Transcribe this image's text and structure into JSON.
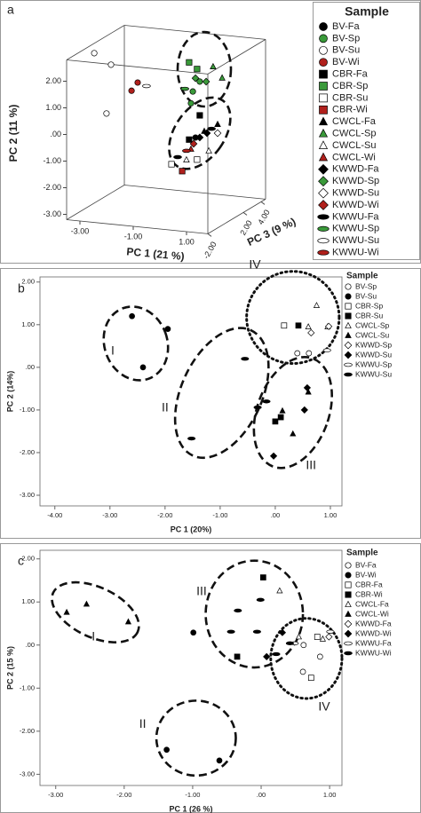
{
  "chart_data": [
    {
      "type": "scatter3d",
      "panel": "a",
      "xlabel": "PC 1 (21 %)",
      "ylabel": "PC 2 (11 %)",
      "zlabel": "PC 3 (9 %)",
      "legend_title": "Sample",
      "xlim": [
        -3.5,
        1.8
      ],
      "ylim": [
        -3.2,
        2.8
      ],
      "zlim": [
        -2,
        4.5
      ],
      "xticks": [
        {
          "value": -3,
          "label": "-3.00"
        },
        {
          "value": -1,
          "label": "-1.00"
        },
        {
          "value": 1,
          "label": "1.00"
        }
      ],
      "yticks": [
        {
          "value": 2,
          "label": "2.00"
        },
        {
          "value": 1,
          "label": "1.00"
        },
        {
          "value": 0,
          "label": ".00"
        },
        {
          "value": -1,
          "label": "-1.00"
        },
        {
          "value": -2,
          "label": "-2.00"
        },
        {
          "value": -3,
          "label": "-3.00"
        }
      ],
      "zticks": [
        {
          "value": -2,
          "label": "-2.00"
        },
        {
          "value": 2,
          "label": "2.00"
        },
        {
          "value": 4,
          "label": "4.00"
        }
      ],
      "series": [
        {
          "name": "BV-Fa",
          "color": "#000000",
          "marker": "circle",
          "x": [
            0.67
          ],
          "y": [
            -0.1
          ],
          "z": [
            0
          ]
        },
        {
          "name": "BV-Sp",
          "color": "#3a9a3a",
          "marker": "circle",
          "x": [
            0.57,
            0.83,
            0.5
          ],
          "y": [
            1.62,
            2.02,
            1.17
          ],
          "z": [
            0,
            0,
            0
          ]
        },
        {
          "name": "BV-Su",
          "color": "#ffffff",
          "marker": "circle",
          "x": [
            -3.13,
            -2.5,
            -2.67
          ],
          "y": [
            2.69,
            2.32,
            0.47
          ],
          "z": [
            0,
            0,
            0
          ]
        },
        {
          "name": "BV-Wi",
          "color": "#b0201c",
          "marker": "circle",
          "x": [
            -1.5,
            -1.73
          ],
          "y": [
            1.75,
            1.42
          ],
          "z": [
            0,
            0
          ]
        },
        {
          "name": "CBR-Fa",
          "color": "#000000",
          "marker": "square",
          "x": [
            0.83,
            0.43
          ],
          "y": [
            0.75,
            -0.2
          ],
          "z": [
            0,
            0
          ]
        },
        {
          "name": "CBR-Sp",
          "color": "#3a9a3a",
          "marker": "square",
          "x": [
            0.43,
            0.73
          ],
          "y": [
            2.7,
            2.48
          ],
          "z": [
            0,
            0
          ]
        },
        {
          "name": "CBR-Su",
          "color": "#ffffff",
          "marker": "square",
          "x": [
            -0.23,
            0.73
          ],
          "y": [
            -1.19,
            -0.92
          ],
          "z": [
            0,
            0
          ]
        },
        {
          "name": "CBR-Wi",
          "color": "#b0201c",
          "marker": "square",
          "x": [
            0.17
          ],
          "y": [
            -1.41
          ],
          "z": [
            0
          ]
        },
        {
          "name": "CWCL-Fa",
          "color": "#000000",
          "marker": "triangle",
          "x": [
            1,
            1.5
          ],
          "y": [
            0.17,
            0.48
          ],
          "z": [
            0,
            0
          ]
        },
        {
          "name": "CWCL-Sp",
          "color": "#3a9a3a",
          "marker": "triangle",
          "x": [
            1.33,
            1.67
          ],
          "y": [
            2.63,
            2.24
          ],
          "z": [
            0,
            0
          ]
        },
        {
          "name": "CWCL-Su",
          "color": "#ffffff",
          "marker": "triangle",
          "x": [
            0.33,
            1.17
          ],
          "y": [
            -0.97,
            -0.55
          ],
          "z": [
            0,
            0
          ]
        },
        {
          "name": "CWCL-Wi",
          "color": "#b0201c",
          "marker": "triangle",
          "x": [
            0.5
          ],
          "y": [
            -0.55
          ],
          "z": [
            0
          ]
        },
        {
          "name": "KWWD-Fa",
          "color": "#000000",
          "marker": "diamond",
          "x": [
            0.83,
            1.1
          ],
          "y": [
            -0.08,
            0.11
          ],
          "z": [
            0,
            0
          ]
        },
        {
          "name": "KWWD-Sp",
          "color": "#3a9a3a",
          "marker": "diamond",
          "x": [
            1.07,
            0.67
          ],
          "y": [
            2.04,
            2.13
          ],
          "z": [
            0,
            0
          ]
        },
        {
          "name": "KWWD-Su",
          "color": "#ffffff",
          "marker": "diamond",
          "x": [
            1.5
          ],
          "y": [
            0.15
          ],
          "z": [
            0
          ]
        },
        {
          "name": "KWWD-Wi",
          "color": "#b0201c",
          "marker": "diamond",
          "x": [
            0.6
          ],
          "y": [
            -0.34
          ],
          "z": [
            0
          ]
        },
        {
          "name": "KWWU-Fa",
          "color": "#000000",
          "marker": "ellipse",
          "x": [
            0,
            1.27
          ],
          "y": [
            -0.9,
            0.29
          ],
          "z": [
            0,
            0
          ]
        },
        {
          "name": "KWWU-Sp",
          "color": "#3a9a3a",
          "marker": "ellipse",
          "x": [
            0.27
          ],
          "y": [
            1.69
          ],
          "z": [
            0
          ]
        },
        {
          "name": "KWWU-Su",
          "color": "#ffffff",
          "marker": "ellipse",
          "x": [
            -1.17
          ],
          "y": [
            1.65
          ],
          "z": [
            0
          ]
        },
        {
          "name": "KWWU-Wi",
          "color": "#b0201c",
          "marker": "ellipse",
          "x": [
            0.33
          ],
          "y": [
            -0.63
          ],
          "z": [
            0
          ]
        }
      ],
      "annotations": [
        {
          "cx": 1,
          "cy": 2.5,
          "rx": 1,
          "ry": 1.4,
          "angle": 0,
          "style": "dashed"
        },
        {
          "cx": 0.83,
          "cy": 0.08,
          "rx": 0.93,
          "ry": 1.5,
          "angle": 35,
          "style": "dashed"
        }
      ]
    },
    {
      "type": "scatter",
      "panel": "b",
      "xlabel": "PC 1 (20%)",
      "ylabel": "PC 2 (14%)",
      "legend_title": "Sample",
      "xlim": [
        -4.27,
        1.21
      ],
      "ylim": [
        -3.25,
        2.12
      ],
      "xticks": [
        {
          "value": -4,
          "label": "-4.00"
        },
        {
          "value": -3,
          "label": "-3.00"
        },
        {
          "value": -2,
          "label": "-2.00"
        },
        {
          "value": -1,
          "label": "-1.00"
        },
        {
          "value": 0,
          "label": ".00"
        },
        {
          "value": 1,
          "label": "1.00"
        }
      ],
      "yticks": [
        {
          "value": 2,
          "label": "2.00"
        },
        {
          "value": 1,
          "label": "1.00"
        },
        {
          "value": 0,
          "label": ".00"
        },
        {
          "value": -1,
          "label": "-1.00"
        },
        {
          "value": -2,
          "label": "-2.00"
        },
        {
          "value": -3,
          "label": "-3.00"
        }
      ],
      "series": [
        {
          "name": "BV-Sp",
          "color": "#ffffff",
          "marker": "circle",
          "x": [
            0.4,
            0.61
          ],
          "y": [
            0.33,
            0.33
          ]
        },
        {
          "name": "BV-Su",
          "color": "#000000",
          "marker": "circle",
          "x": [
            -2.6,
            -1.95,
            -2.4
          ],
          "y": [
            1.2,
            0.9,
            0
          ]
        },
        {
          "name": "CBR-Sp",
          "color": "#ffffff",
          "marker": "square",
          "x": [
            0.16
          ],
          "y": [
            0.98
          ]
        },
        {
          "name": "CBR-Su",
          "color": "#000000",
          "marker": "square",
          "x": [
            0.42,
            0,
            0.1
          ],
          "y": [
            0.98,
            -1.27,
            -1.17
          ]
        },
        {
          "name": "CWCL-Sp",
          "color": "#ffffff",
          "marker": "triangle",
          "x": [
            0.75,
            0.6,
            0.95
          ],
          "y": [
            1.45,
            0.95,
            0.95
          ]
        },
        {
          "name": "CWCL-Su",
          "color": "#000000",
          "marker": "triangle",
          "x": [
            0.13,
            0.6,
            0.32
          ],
          "y": [
            -1.02,
            -0.58,
            -1.56
          ]
        },
        {
          "name": "KWWD-Sp",
          "color": "#ffffff",
          "marker": "diamond",
          "x": [
            0.65,
            0.97
          ],
          "y": [
            0.81,
            0.96
          ]
        },
        {
          "name": "KWWD-Su",
          "color": "#000000",
          "marker": "diamond",
          "x": [
            0.58,
            0.53,
            -0.03
          ],
          "y": [
            -0.48,
            -1,
            -2.08
          ]
        },
        {
          "name": "KWWU-Sp",
          "color": "#ffffff",
          "marker": "ellipse",
          "x": [
            0.94
          ],
          "y": [
            0.4
          ]
        },
        {
          "name": "KWWU-Su",
          "color": "#000000",
          "marker": "ellipse",
          "x": [
            -0.55,
            -0.32,
            -1.52,
            -0.16
          ],
          "y": [
            0.2,
            -0.94,
            -1.67,
            -0.8
          ]
        }
      ],
      "annotations": [
        {
          "label": "I",
          "cx": -2.53,
          "cy": 0.56,
          "rx": 0.57,
          "ry": 0.88,
          "angle": -20,
          "style": "dashed",
          "label_x": -2.95,
          "label_y": 0.38
        },
        {
          "label": "II",
          "cx": -0.97,
          "cy": -0.6,
          "rx": 0.73,
          "ry": 1.62,
          "angle": 25,
          "style": "dashed",
          "label_x": -2,
          "label_y": -0.96
        },
        {
          "label": "III",
          "cx": 0.32,
          "cy": -1.06,
          "rx": 0.65,
          "ry": 1.35,
          "angle": 20,
          "style": "dashed",
          "label_x": 0.65,
          "label_y": -2.31
        },
        {
          "label": "IV",
          "cx": 0.32,
          "cy": 1.17,
          "rx": 0.84,
          "ry": 1.08,
          "angle": 0,
          "style": "dotted",
          "label_x": -0.37,
          "label_y": 2.4
        }
      ]
    },
    {
      "type": "scatter",
      "panel": "c",
      "xlabel": "PC 1 (26 %)",
      "ylabel": "PC 2 (15 %)",
      "legend_title": "Sample",
      "xlim": [
        -3.23,
        1.18
      ],
      "ylim": [
        -3.26,
        2.2
      ],
      "xticks": [
        {
          "value": -3,
          "label": "-3.00"
        },
        {
          "value": -2,
          "label": "-2.00"
        },
        {
          "value": -1,
          "label": "-1.00"
        },
        {
          "value": 0,
          "label": ".00"
        },
        {
          "value": 1,
          "label": "1.00"
        }
      ],
      "yticks": [
        {
          "value": 2,
          "label": "2.00"
        },
        {
          "value": 1,
          "label": "1.00"
        },
        {
          "value": 0,
          "label": ".00"
        },
        {
          "value": -1,
          "label": "-1.00"
        },
        {
          "value": -2,
          "label": "-2.00"
        },
        {
          "value": -3,
          "label": "-3.00"
        }
      ],
      "series": [
        {
          "name": "BV-Fa",
          "color": "#ffffff",
          "marker": "circle",
          "x": [
            0.62,
            0.61,
            0.86
          ],
          "y": [
            0,
            -0.62,
            -0.27
          ]
        },
        {
          "name": "BV-Wi",
          "color": "#000000",
          "marker": "circle",
          "x": [
            -0.99,
            -1.38,
            -0.61
          ],
          "y": [
            0.29,
            -2.43,
            -2.68
          ]
        },
        {
          "name": "CBR-Fa",
          "color": "#ffffff",
          "marker": "square",
          "x": [
            0.82,
            0.73
          ],
          "y": [
            0.19,
            -0.76
          ]
        },
        {
          "name": "CBR-Wi",
          "color": "#000000",
          "marker": "square",
          "x": [
            0.03,
            -0.35
          ],
          "y": [
            1.57,
            -0.27
          ]
        },
        {
          "name": "CWCL-Fa",
          "color": "#ffffff",
          "marker": "triangle",
          "x": [
            0.27,
            0.9,
            0.55
          ],
          "y": [
            1.26,
            0.14,
            0.19
          ]
        },
        {
          "name": "CWCL-Wi",
          "color": "#000000",
          "marker": "triangle",
          "x": [
            -2.84,
            -2.55,
            -1.94
          ],
          "y": [
            0.76,
            0.95,
            0.54
          ]
        },
        {
          "name": "KWWD-Fa",
          "color": "#ffffff",
          "marker": "diamond",
          "x": [
            0.99
          ],
          "y": [
            0.19
          ]
        },
        {
          "name": "KWWD-Wi",
          "color": "#000000",
          "marker": "diamond",
          "x": [
            0.31,
            0.08
          ],
          "y": [
            0.29,
            -0.27
          ]
        },
        {
          "name": "KWWU-Fa",
          "color": "#ffffff",
          "marker": "ellipse",
          "x": [
            1.01,
            0.49
          ],
          "y": [
            0.31,
            0.04
          ]
        },
        {
          "name": "KWWU-Wi",
          "color": "#000000",
          "marker": "ellipse",
          "x": [
            -0.34,
            -0.01,
            -0.44,
            -0.06,
            0.22,
            0.42
          ],
          "y": [
            0.8,
            1.05,
            0.31,
            0.31,
            -0.21,
            0.04
          ]
        }
      ],
      "annotations": [
        {
          "label": "I",
          "cx": -2.42,
          "cy": 0.76,
          "rx": 0.68,
          "ry": 0.58,
          "angle": 25,
          "style": "dashed",
          "label_x": -2.45,
          "label_y": 0.19
        },
        {
          "label": "II",
          "cx": -0.95,
          "cy": -2.16,
          "rx": 0.58,
          "ry": 0.87,
          "angle": 0,
          "style": "dashed",
          "label_x": -1.73,
          "label_y": -1.84
        },
        {
          "label": "III",
          "cx": -0.1,
          "cy": 0.72,
          "rx": 0.71,
          "ry": 1.24,
          "angle": 0,
          "style": "dashed",
          "label_x": -0.87,
          "label_y": 1.24
        },
        {
          "label": "IV",
          "cx": 0.66,
          "cy": -0.31,
          "rx": 0.52,
          "ry": 0.93,
          "angle": 0,
          "style": "dotted",
          "label_x": 0.92,
          "label_y": -1.44
        }
      ]
    }
  ]
}
